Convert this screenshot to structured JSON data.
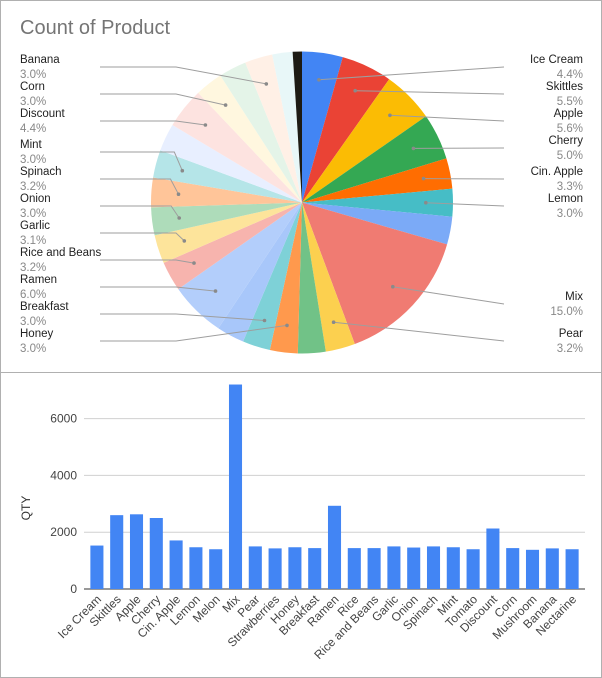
{
  "chart_data": [
    {
      "type": "pie",
      "title": "Count of Product",
      "slices": [
        {
          "name": "Ice Cream",
          "pct": "4.4%",
          "color": "#4285f4"
        },
        {
          "name": "Skittles",
          "pct": "5.5%",
          "color": "#ea4335"
        },
        {
          "name": "Apple",
          "pct": "5.6%",
          "color": "#fbbc04"
        },
        {
          "name": "Cherry",
          "pct": "5.0%",
          "color": "#34a853"
        },
        {
          "name": "Cin. Apple",
          "pct": "3.3%",
          "color": "#ff6d01"
        },
        {
          "name": "Lemon",
          "pct": "3.0%",
          "color": "#46bdc6"
        },
        {
          "name": "Melon",
          "pct": "3.0%",
          "color": "#7baaf7"
        },
        {
          "name": "Mix",
          "pct": "15.0%",
          "color": "#f07b72"
        },
        {
          "name": "Pear",
          "pct": "3.2%",
          "color": "#fcd04f"
        },
        {
          "name": "Strawberries",
          "pct": "3.0%",
          "color": "#71c287"
        },
        {
          "name": "Honey",
          "pct": "3.0%",
          "color": "#ff994d"
        },
        {
          "name": "Breakfast",
          "pct": "3.0%",
          "color": "#7ed1d7"
        },
        {
          "name": "Rice",
          "pct": "3.0%",
          "color": "#a8c7fa"
        },
        {
          "name": "Ramen",
          "pct": "6.0%",
          "color": "#b3cefb"
        },
        {
          "name": "Rice and Beans",
          "pct": "3.2%",
          "color": "#f7b4ae"
        },
        {
          "name": "Garlic",
          "pct": "3.1%",
          "color": "#fde49b"
        },
        {
          "name": "Onion",
          "pct": "3.0%",
          "color": "#aedcba"
        },
        {
          "name": "Spinach",
          "pct": "3.2%",
          "color": "#ffc599"
        },
        {
          "name": "Mint",
          "pct": "3.0%",
          "color": "#b5e5e8"
        },
        {
          "name": "Tomato",
          "pct": "3.0%",
          "color": "#e8efff"
        },
        {
          "name": "Discount",
          "pct": "4.4%",
          "color": "#fde3e0"
        },
        {
          "name": "Corn",
          "pct": "3.0%",
          "color": "#fff7df"
        },
        {
          "name": "Mushroom",
          "pct": "3.0%",
          "color": "#e4f4e8"
        },
        {
          "name": "Banana",
          "pct": "3.0%",
          "color": "#fff0e6"
        },
        {
          "name": "Nectarine",
          "pct": "2.2%",
          "color": "#e8f7f8"
        },
        {
          "name": "",
          "pct": "1.0%",
          "color": "#1d1b14"
        }
      ],
      "labeled": [
        "Ice Cream",
        "Skittles",
        "Apple",
        "Cherry",
        "Cin. Apple",
        "Lemon",
        "Mix",
        "Pear",
        "Honey",
        "Breakfast",
        "Ramen",
        "Rice and Beans",
        "Garlic",
        "Onion",
        "Spinach",
        "Mint",
        "Discount",
        "Corn",
        "Banana"
      ]
    },
    {
      "type": "bar",
      "title": "",
      "xlabel": "",
      "ylabel": "QTY",
      "ylim": [
        0,
        7500
      ],
      "yticks": [
        0,
        2000,
        4000,
        6000
      ],
      "grid": true,
      "color": "#4285f4",
      "categories": [
        "Ice Cream",
        "Skittles",
        "Apple",
        "Cherry",
        "Cin. Apple",
        "Lemon",
        "Melon",
        "Mix",
        "Pear",
        "Strawberries",
        "Honey",
        "Breakfast",
        "Ramen",
        "Rice",
        "Rice and Beans",
        "Garlic",
        "Onion",
        "Spinach",
        "Mint",
        "Tomato",
        "Discount",
        "Corn",
        "Mushroom",
        "Banana",
        "Nectarine"
      ],
      "values": [
        1530,
        2600,
        2630,
        2500,
        1710,
        1470,
        1400,
        7200,
        1500,
        1430,
        1470,
        1440,
        2930,
        1440,
        1440,
        1500,
        1460,
        1500,
        1470,
        1400,
        2130,
        1440,
        1380,
        1430,
        1400
      ]
    }
  ]
}
